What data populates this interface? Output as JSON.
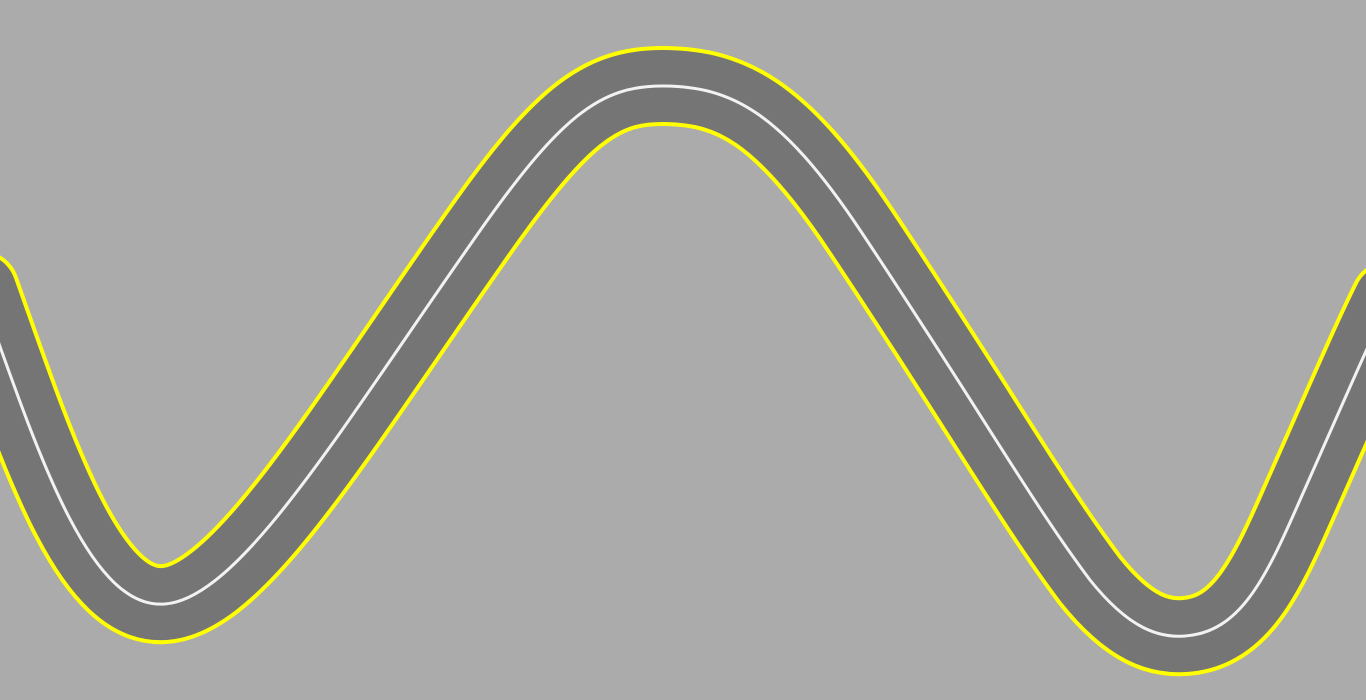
{
  "scene": {
    "background_color": "#ababab",
    "road_color": "#767576",
    "edge_line_color": "#ffff00",
    "center_line_color": "#f2f2f2"
  }
}
